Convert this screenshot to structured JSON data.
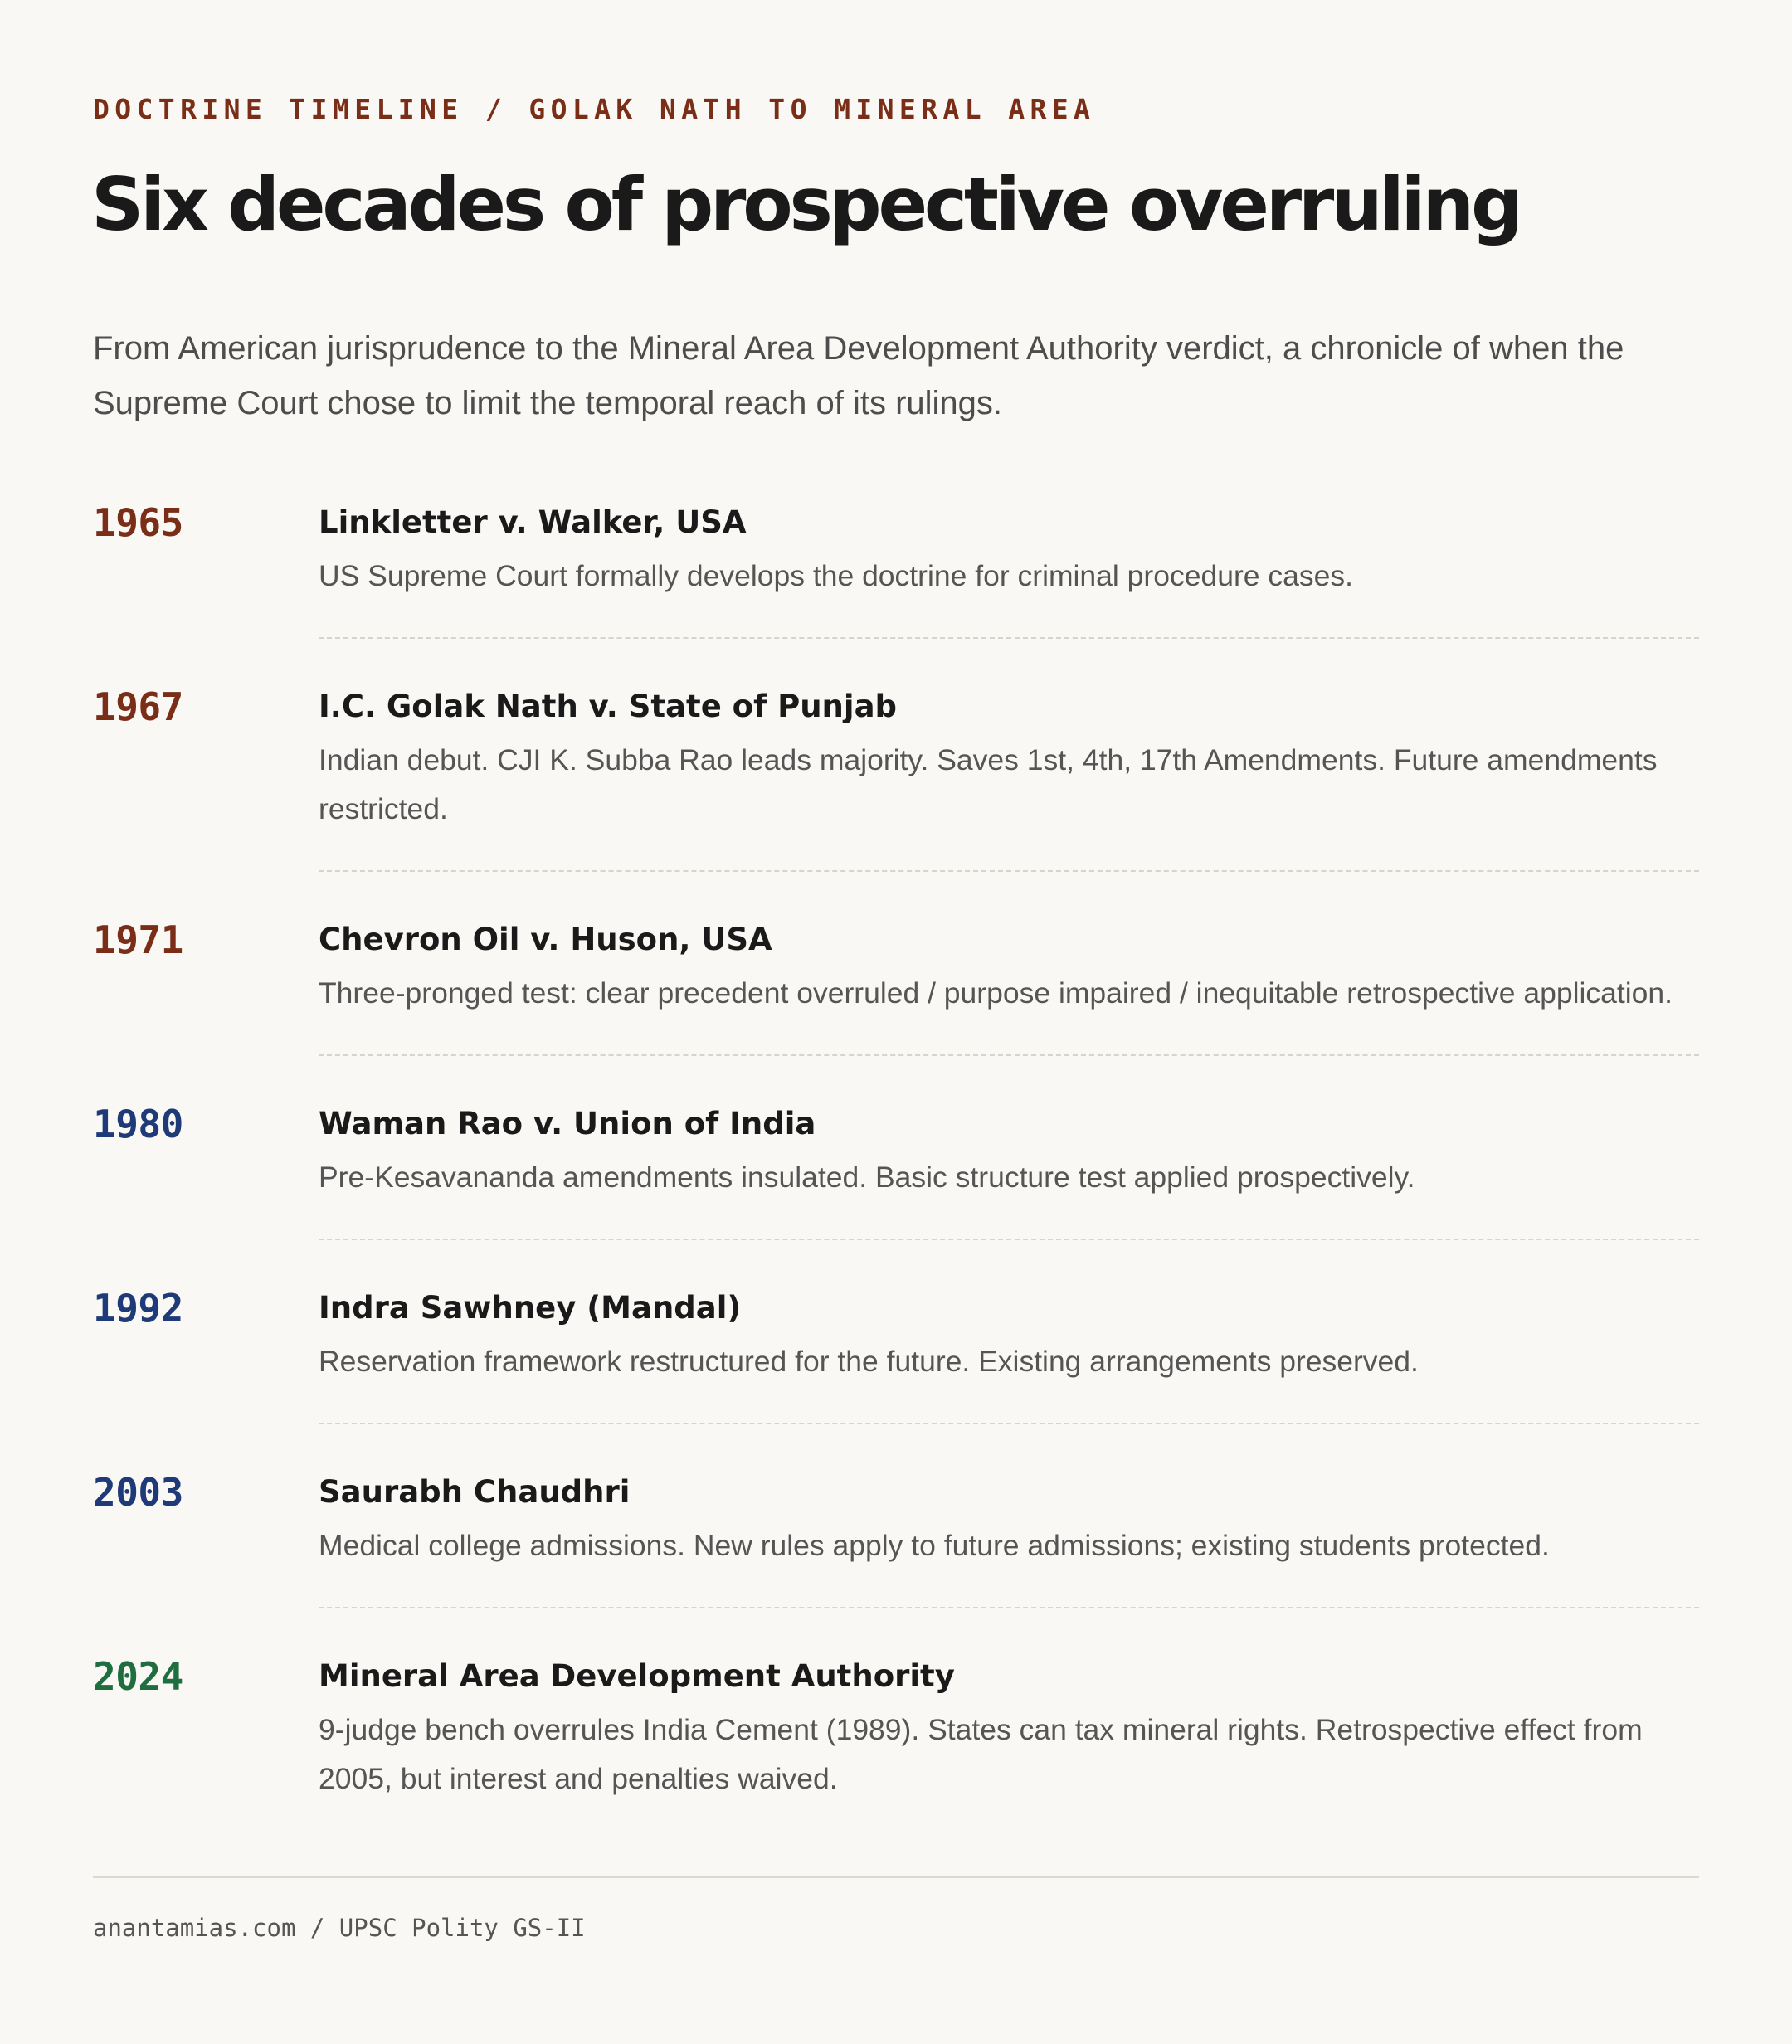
{
  "header": {
    "eyebrow": "DOCTRINE TIMELINE / GOLAK NATH TO MINERAL AREA",
    "title": "Six decades of prospective overruling",
    "intro": "From American jurisprudence to the Mineral Area Development Authority verdict, a chronicle of when the Supreme Court chose to limit the temporal reach of its rulings."
  },
  "colors": {
    "brown": "#7a2e17",
    "navy": "#1e3a78",
    "green": "#1f6e3f"
  },
  "timeline": [
    {
      "year": "1965",
      "case": "Linkletter v. Walker, USA",
      "desc": "US Supreme Court formally develops the doctrine for criminal procedure cases.",
      "color": "brown"
    },
    {
      "year": "1967",
      "case": "I.C. Golak Nath v. State of Punjab",
      "desc": "Indian debut. CJI K. Subba Rao leads majority. Saves 1st, 4th, 17th Amendments. Future amendments restricted.",
      "color": "brown"
    },
    {
      "year": "1971",
      "case": "Chevron Oil v. Huson, USA",
      "desc": "Three-pronged test: clear precedent overruled / purpose impaired / inequitable retrospective application.",
      "color": "brown"
    },
    {
      "year": "1980",
      "case": "Waman Rao v. Union of India",
      "desc": "Pre-Kesavananda amendments insulated. Basic structure test applied prospectively.",
      "color": "navy"
    },
    {
      "year": "1992",
      "case": "Indra Sawhney (Mandal)",
      "desc": "Reservation framework restructured for the future. Existing arrangements preserved.",
      "color": "navy"
    },
    {
      "year": "2003",
      "case": "Saurabh Chaudhri",
      "desc": "Medical college admissions. New rules apply to future admissions; existing students protected.",
      "color": "navy"
    },
    {
      "year": "2024",
      "case": "Mineral Area Development Authority",
      "desc": "9-judge bench overrules India Cement (1989). States can tax mineral rights. Retrospective effect from 2005, but interest and penalties waived.",
      "color": "green"
    }
  ],
  "footer": {
    "text": "anantamias.com / UPSC Polity GS-II"
  }
}
